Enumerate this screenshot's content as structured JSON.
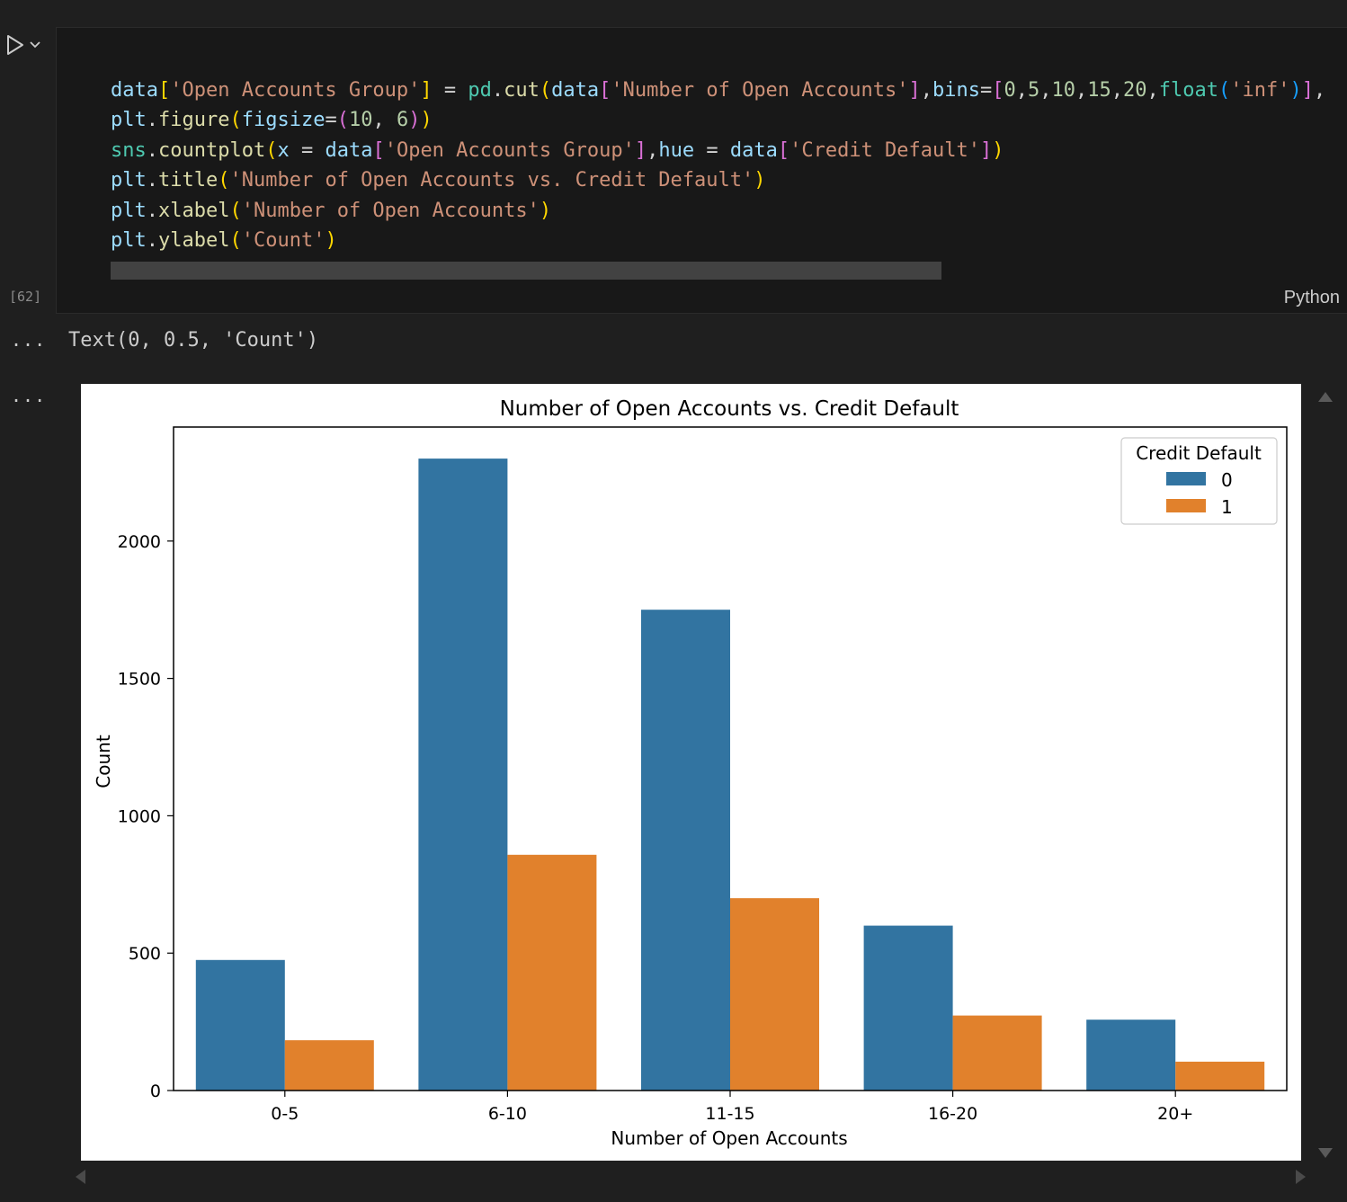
{
  "cell": {
    "execution_count": "[62]",
    "language": "Python",
    "code_lines": [
      [
        [
          "t-var",
          "data"
        ],
        [
          "b1",
          "["
        ],
        [
          "t-str",
          "'Open Accounts Group'"
        ],
        [
          "b1",
          "]"
        ],
        [
          "t-op",
          " = "
        ],
        [
          "t-mod",
          "pd"
        ],
        [
          "t-op",
          "."
        ],
        [
          "t-fn",
          "cut"
        ],
        [
          "b1",
          "("
        ],
        [
          "t-var",
          "data"
        ],
        [
          "b2",
          "["
        ],
        [
          "t-str",
          "'Number of Open Accounts'"
        ],
        [
          "b2",
          "]"
        ],
        [
          "t-op",
          ","
        ],
        [
          "t-var",
          "bins"
        ],
        [
          "t-op",
          "="
        ],
        [
          "b2",
          "["
        ],
        [
          "t-num",
          "0"
        ],
        [
          "t-op",
          ","
        ],
        [
          "t-num",
          "5"
        ],
        [
          "t-op",
          ","
        ],
        [
          "t-num",
          "10"
        ],
        [
          "t-op",
          ","
        ],
        [
          "t-num",
          "15"
        ],
        [
          "t-op",
          ","
        ],
        [
          "t-num",
          "20"
        ],
        [
          "t-op",
          ","
        ],
        [
          "t-mod",
          "float"
        ],
        [
          "b3",
          "("
        ],
        [
          "t-str",
          "'inf'"
        ],
        [
          "b3",
          ")"
        ],
        [
          "b2",
          "]"
        ],
        [
          "t-op",
          ","
        ]
      ],
      [
        [
          "t-var",
          "plt"
        ],
        [
          "t-op",
          "."
        ],
        [
          "t-fn",
          "figure"
        ],
        [
          "b1",
          "("
        ],
        [
          "t-var",
          "figsize"
        ],
        [
          "t-op",
          "="
        ],
        [
          "b2",
          "("
        ],
        [
          "t-num",
          "10"
        ],
        [
          "t-op",
          ", "
        ],
        [
          "t-num",
          "6"
        ],
        [
          "b2",
          ")"
        ],
        [
          "b1",
          ")"
        ]
      ],
      [
        [
          "t-mod",
          "sns"
        ],
        [
          "t-op",
          "."
        ],
        [
          "t-fn",
          "countplot"
        ],
        [
          "b1",
          "("
        ],
        [
          "t-var",
          "x"
        ],
        [
          "t-op",
          " = "
        ],
        [
          "t-var",
          "data"
        ],
        [
          "b2",
          "["
        ],
        [
          "t-str",
          "'Open Accounts Group'"
        ],
        [
          "b2",
          "]"
        ],
        [
          "t-op",
          ","
        ],
        [
          "t-var",
          "hue"
        ],
        [
          "t-op",
          " = "
        ],
        [
          "t-var",
          "data"
        ],
        [
          "b2",
          "["
        ],
        [
          "t-str",
          "'Credit Default'"
        ],
        [
          "b2",
          "]"
        ],
        [
          "b1",
          ")"
        ]
      ],
      [
        [
          "t-var",
          "plt"
        ],
        [
          "t-op",
          "."
        ],
        [
          "t-fn",
          "title"
        ],
        [
          "b1",
          "("
        ],
        [
          "t-str",
          "'Number of Open Accounts vs. Credit Default'"
        ],
        [
          "b1",
          ")"
        ]
      ],
      [
        [
          "t-var",
          "plt"
        ],
        [
          "t-op",
          "."
        ],
        [
          "t-fn",
          "xlabel"
        ],
        [
          "b1",
          "("
        ],
        [
          "t-str",
          "'Number of Open Accounts'"
        ],
        [
          "b1",
          ")"
        ]
      ],
      [
        [
          "t-var",
          "plt"
        ],
        [
          "t-op",
          "."
        ],
        [
          "t-fn",
          "ylabel"
        ],
        [
          "b1",
          "("
        ],
        [
          "t-str",
          "'Count'"
        ],
        [
          "b1",
          ")"
        ]
      ]
    ]
  },
  "output": {
    "ellipsis": "...",
    "text": "Text(0, 0.5, 'Count')"
  },
  "chart_data": {
    "type": "bar",
    "title": "Number of Open Accounts vs. Credit Default",
    "xlabel": "Number of Open Accounts",
    "ylabel": "Count",
    "categories": [
      "0-5",
      "6-10",
      "11-15",
      "16-20",
      "20+"
    ],
    "series": [
      {
        "name": "0",
        "color": "#3274a1",
        "values": [
          475,
          2300,
          1750,
          600,
          258
        ]
      },
      {
        "name": "1",
        "color": "#e1812c",
        "values": [
          183,
          858,
          700,
          273,
          105
        ]
      }
    ],
    "ylim": [
      0,
      2415
    ],
    "yticks": [
      0,
      500,
      1000,
      1500,
      2000
    ],
    "legend": {
      "title": "Credit Default",
      "placement": "top-right"
    },
    "grid": false
  }
}
